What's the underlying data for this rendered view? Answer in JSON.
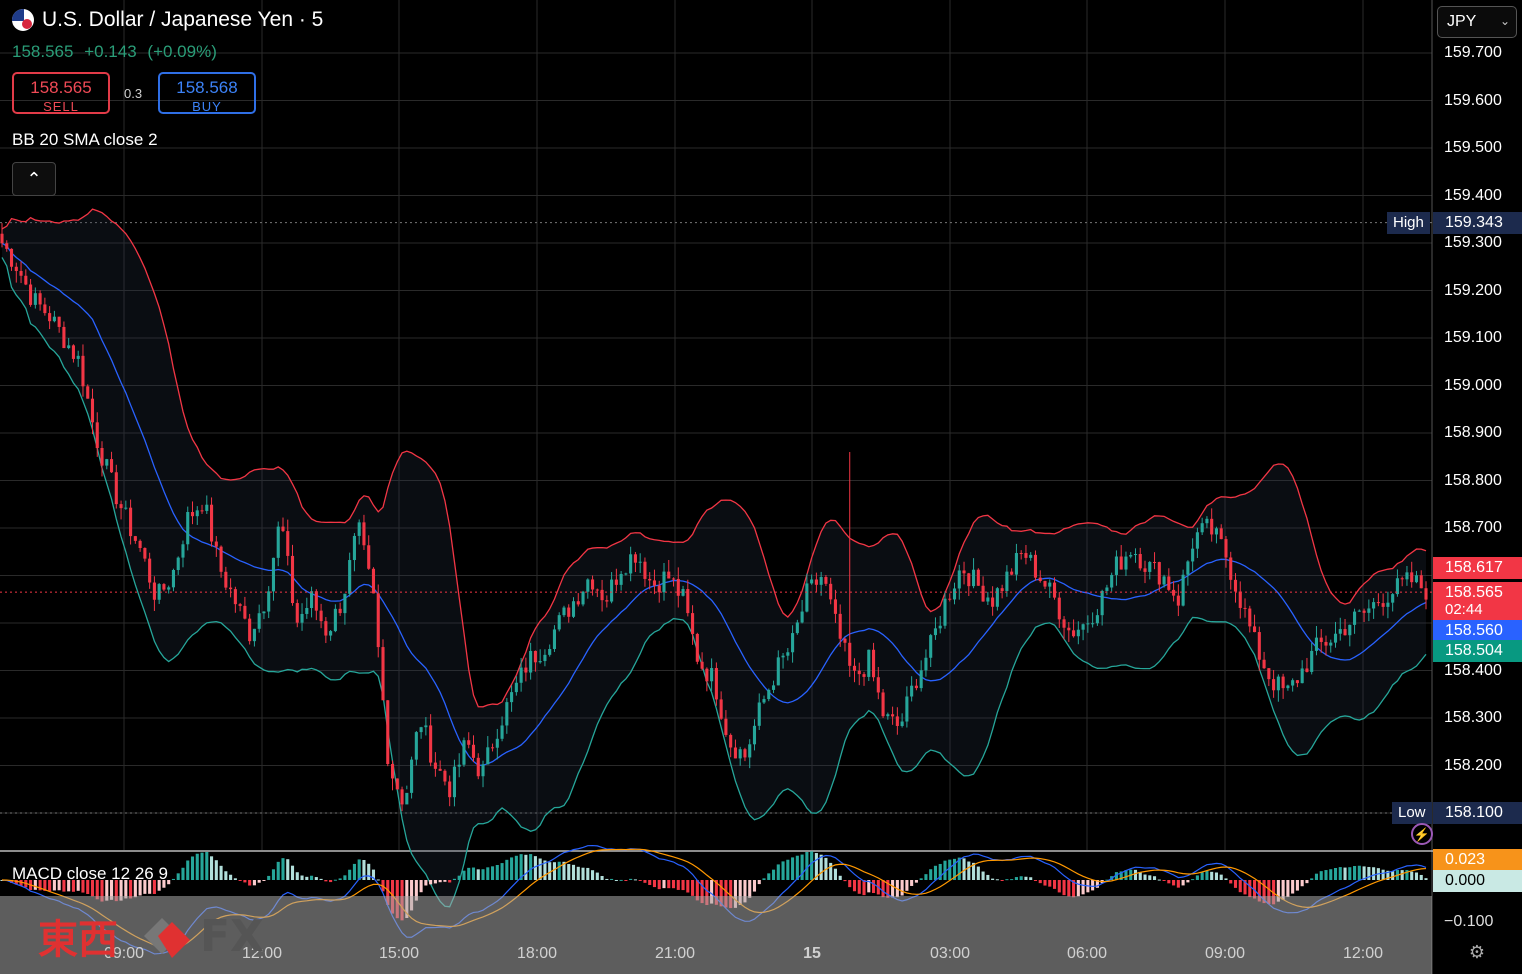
{
  "header": {
    "title": "U.S. Dollar / Japanese Yen · 5",
    "last_price": "158.565",
    "change": "+0.143",
    "change_pct": "(+0.09%)"
  },
  "trade": {
    "sell_price": "158.565",
    "sell_label": "SELL",
    "spread": "0.3",
    "buy_price": "158.568",
    "buy_label": "BUY"
  },
  "indicators": {
    "bb_label": "BB 20 SMA close 2",
    "collapse_icon": "chevron-up-icon",
    "macd_label": "MACD close 12 26 9"
  },
  "currency_selector": {
    "value": "JPY"
  },
  "price_axis": {
    "ticks": [
      "159.700",
      "159.600",
      "159.500",
      "159.400",
      "159.300",
      "159.200",
      "159.100",
      "159.000",
      "158.900",
      "158.800",
      "158.700",
      "158.400",
      "158.300",
      "158.200"
    ],
    "macd_tick": "−0.100"
  },
  "time_axis": {
    "ticks": [
      "09:00",
      "12:00",
      "15:00",
      "18:00",
      "21:00",
      "15",
      "03:00",
      "06:00",
      "09:00",
      "12:00"
    ]
  },
  "badges": {
    "upper_band": "158.617",
    "last": "158.565",
    "countdown": "02:44",
    "basis": "158.560",
    "lower_band": "158.504",
    "high_label": "High",
    "high_value": "159.343",
    "low_label": "Low",
    "low_value": "158.100",
    "macd_value": "0.023",
    "macd_zero": "0.000"
  },
  "colors": {
    "up": "#26a69a",
    "down": "#f23645",
    "bb_upper": "#f23645",
    "bb_lower": "#26a69a",
    "bb_basis": "#2962ff",
    "macd_line": "#2962ff",
    "signal_line": "#ff9800"
  },
  "watermark": {
    "cn": "東西",
    "fx": "FX"
  },
  "chart_data": {
    "type": "candlestick",
    "symbol": "USDJPY",
    "interval": "5",
    "ylim": [
      158.1,
      159.74
    ],
    "anchors": [
      [
        0,
        159.3
      ],
      [
        1,
        159.25
      ],
      [
        2,
        159.18
      ],
      [
        3,
        159.15
      ],
      [
        4,
        159.1
      ],
      [
        5,
        159.05
      ],
      [
        6,
        158.9
      ],
      [
        7,
        158.8
      ],
      [
        8,
        158.72
      ],
      [
        9,
        158.65
      ],
      [
        10,
        158.55
      ],
      [
        11,
        158.6
      ],
      [
        12,
        158.72
      ],
      [
        13,
        158.76
      ],
      [
        14,
        158.62
      ],
      [
        15,
        158.55
      ],
      [
        16,
        158.48
      ],
      [
        17,
        158.55
      ],
      [
        18,
        158.72
      ],
      [
        19,
        158.5
      ],
      [
        20,
        158.55
      ],
      [
        21,
        158.48
      ],
      [
        22,
        158.55
      ],
      [
        23,
        158.7
      ],
      [
        24,
        158.55
      ],
      [
        25,
        158.2
      ],
      [
        26,
        158.12
      ],
      [
        27,
        158.3
      ],
      [
        28,
        158.2
      ],
      [
        29,
        158.15
      ],
      [
        30,
        158.25
      ],
      [
        31,
        158.18
      ],
      [
        32,
        158.28
      ],
      [
        33,
        158.35
      ],
      [
        34,
        158.42
      ],
      [
        35,
        158.45
      ],
      [
        36,
        158.5
      ],
      [
        37,
        158.55
      ],
      [
        38,
        158.6
      ],
      [
        39,
        158.55
      ],
      [
        40,
        158.62
      ],
      [
        41,
        158.65
      ],
      [
        42,
        158.58
      ],
      [
        43,
        158.6
      ],
      [
        44,
        158.55
      ],
      [
        45,
        158.42
      ],
      [
        46,
        158.38
      ],
      [
        47,
        158.25
      ],
      [
        48,
        158.22
      ],
      [
        49,
        158.32
      ],
      [
        50,
        158.4
      ],
      [
        51,
        158.45
      ],
      [
        52,
        158.56
      ],
      [
        53,
        158.6
      ],
      [
        54,
        158.48
      ],
      [
        55,
        158.38
      ],
      [
        56,
        158.42
      ],
      [
        57,
        158.3
      ],
      [
        58,
        158.28
      ],
      [
        59,
        158.38
      ],
      [
        60,
        158.45
      ],
      [
        61,
        158.55
      ],
      [
        62,
        158.62
      ],
      [
        63,
        158.58
      ],
      [
        64,
        158.55
      ],
      [
        65,
        158.6
      ],
      [
        66,
        158.65
      ],
      [
        67,
        158.6
      ],
      [
        68,
        158.55
      ],
      [
        69,
        158.48
      ],
      [
        70,
        158.5
      ],
      [
        71,
        158.55
      ],
      [
        72,
        158.62
      ],
      [
        73,
        158.66
      ],
      [
        74,
        158.62
      ],
      [
        75,
        158.6
      ],
      [
        76,
        158.55
      ],
      [
        77,
        158.68
      ],
      [
        78,
        158.7
      ],
      [
        79,
        158.65
      ],
      [
        80,
        158.55
      ],
      [
        81,
        158.45
      ],
      [
        82,
        158.38
      ],
      [
        83,
        158.35
      ],
      [
        84,
        158.4
      ],
      [
        85,
        158.45
      ],
      [
        86,
        158.47
      ],
      [
        87,
        158.5
      ],
      [
        88,
        158.52
      ],
      [
        89,
        158.55
      ],
      [
        90,
        158.57
      ],
      [
        91,
        158.59
      ],
      [
        92,
        158.57
      ]
    ],
    "bb_upper_anchor": "158.617",
    "bb_basis_anchor": "158.560",
    "bb_lower_anchor": "158.504",
    "high": 159.343,
    "low": 158.1
  }
}
